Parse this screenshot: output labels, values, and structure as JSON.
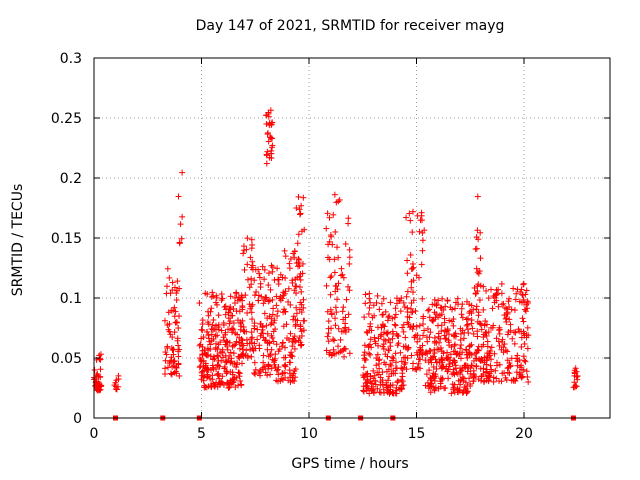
{
  "chart_data": {
    "type": "scatter",
    "title": "Day 147 of 2021, SRMTID for receiver mayg",
    "xlabel": "GPS time / hours",
    "ylabel": "SRMTID / TECUs",
    "xlim": [
      0,
      24
    ],
    "ylim": [
      0,
      0.3
    ],
    "xticks": [
      0,
      5,
      10,
      15,
      20
    ],
    "yticks": [
      0,
      0.05,
      0.1,
      0.15,
      0.2,
      0.25,
      0.3
    ],
    "ytick_labels": [
      "0",
      "0.05",
      "0.1",
      "0.15",
      "0.2",
      "0.25",
      "0.3"
    ],
    "grid": true,
    "marker": "+",
    "color": "#ff0000",
    "clusters": [
      {
        "x_range": [
          0.0,
          0.35
        ],
        "y_range": [
          0.022,
          0.054
        ],
        "count": 40
      },
      {
        "x_range": [
          0.95,
          1.15
        ],
        "y_range": [
          0.023,
          0.04
        ],
        "count": 10
      },
      {
        "x_range": [
          3.3,
          4.0
        ],
        "y_range": [
          0.035,
          0.125
        ],
        "count": 70
      },
      {
        "x_range": [
          3.9,
          4.1
        ],
        "y_range": [
          0.14,
          0.207
        ],
        "count": 7
      },
      {
        "x_range": [
          4.9,
          6.9
        ],
        "y_range": [
          0.025,
          0.105
        ],
        "count": 260
      },
      {
        "x_range": [
          6.8,
          7.4
        ],
        "y_range": [
          0.05,
          0.15
        ],
        "count": 60
      },
      {
        "x_range": [
          7.4,
          8.3
        ],
        "y_range": [
          0.035,
          0.13
        ],
        "count": 90
      },
      {
        "x_range": [
          8.0,
          8.3
        ],
        "y_range": [
          0.21,
          0.26
        ],
        "count": 30
      },
      {
        "x_range": [
          8.3,
          9.4
        ],
        "y_range": [
          0.03,
          0.14
        ],
        "count": 120
      },
      {
        "x_range": [
          9.4,
          9.8
        ],
        "y_range": [
          0.06,
          0.188
        ],
        "count": 50
      },
      {
        "x_range": [
          10.8,
          11.9
        ],
        "y_range": [
          0.05,
          0.187
        ],
        "count": 90
      },
      {
        "x_range": [
          12.5,
          14.5
        ],
        "y_range": [
          0.02,
          0.105
        ],
        "count": 220
      },
      {
        "x_range": [
          14.5,
          15.4
        ],
        "y_range": [
          0.04,
          0.178
        ],
        "count": 90
      },
      {
        "x_range": [
          15.4,
          17.5
        ],
        "y_range": [
          0.02,
          0.1
        ],
        "count": 260
      },
      {
        "x_range": [
          17.7,
          18.0
        ],
        "y_range": [
          0.12,
          0.196
        ],
        "count": 12
      },
      {
        "x_range": [
          17.5,
          20.2
        ],
        "y_range": [
          0.03,
          0.112
        ],
        "count": 260
      },
      {
        "x_range": [
          22.3,
          22.5
        ],
        "y_range": [
          0.025,
          0.057
        ],
        "count": 15
      }
    ],
    "gaps_markers_x": [
      1.0,
      3.2,
      4.9,
      10.9,
      12.4,
      13.9,
      22.3
    ]
  }
}
